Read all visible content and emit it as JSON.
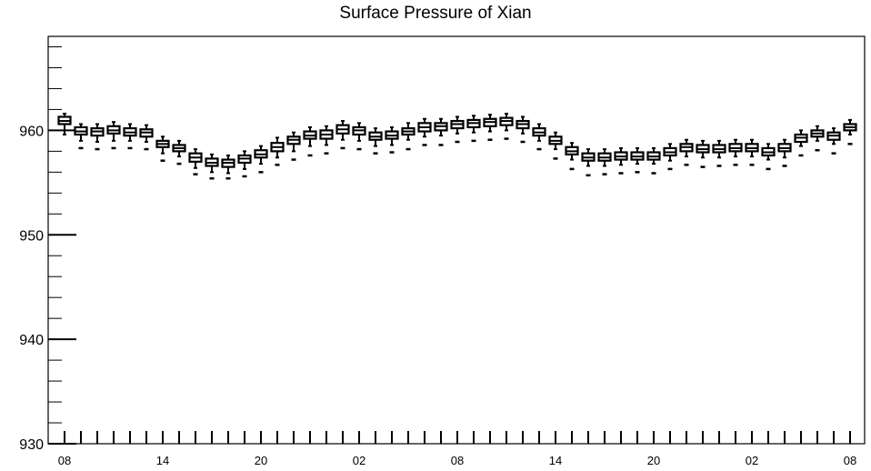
{
  "chart_data": {
    "type": "box",
    "title": "Surface Pressure of Xian",
    "xlabel": "",
    "ylabel": "",
    "ylim": [
      930,
      969
    ],
    "y_ticks": [
      "930",
      "940",
      "950",
      "960"
    ],
    "x_ticks": [
      "08",
      "14",
      "20",
      "02",
      "08",
      "14",
      "20",
      "02",
      "08"
    ],
    "grid": false,
    "series": [
      {
        "boxes": [
          {
            "x": 0,
            "min": 959.6,
            "q1": 960.6,
            "median": 960.9,
            "q3": 961.3,
            "max": 961.6,
            "outlier": null
          },
          {
            "x": 1,
            "min": 959.0,
            "q1": 959.6,
            "median": 959.9,
            "q3": 960.3,
            "max": 960.6,
            "outlier": 958.3
          },
          {
            "x": 2,
            "min": 958.9,
            "q1": 959.5,
            "median": 959.9,
            "q3": 960.2,
            "max": 960.6,
            "outlier": 958.2
          },
          {
            "x": 3,
            "min": 959.0,
            "q1": 959.7,
            "median": 960.0,
            "q3": 960.4,
            "max": 960.8,
            "outlier": 958.3
          },
          {
            "x": 4,
            "min": 959.0,
            "q1": 959.5,
            "median": 959.8,
            "q3": 960.2,
            "max": 960.6,
            "outlier": 958.3
          },
          {
            "x": 5,
            "min": 958.9,
            "q1": 959.4,
            "median": 959.8,
            "q3": 960.1,
            "max": 960.5,
            "outlier": 958.2
          },
          {
            "x": 6,
            "min": 957.8,
            "q1": 958.4,
            "median": 958.7,
            "q3": 959.0,
            "max": 959.4,
            "outlier": 957.1
          },
          {
            "x": 7,
            "min": 957.5,
            "q1": 958.0,
            "median": 958.3,
            "q3": 958.6,
            "max": 959.0,
            "outlier": 956.8
          },
          {
            "x": 8,
            "min": 956.4,
            "q1": 957.0,
            "median": 957.4,
            "q3": 957.8,
            "max": 958.2,
            "outlier": 955.8
          },
          {
            "x": 9,
            "min": 956.0,
            "q1": 956.6,
            "median": 956.9,
            "q3": 957.3,
            "max": 957.7,
            "outlier": 955.4
          },
          {
            "x": 10,
            "min": 955.9,
            "q1": 956.5,
            "median": 956.9,
            "q3": 957.2,
            "max": 957.6,
            "outlier": 955.4
          },
          {
            "x": 11,
            "min": 956.3,
            "q1": 956.9,
            "median": 957.3,
            "q3": 957.6,
            "max": 958.0,
            "outlier": 955.6
          },
          {
            "x": 12,
            "min": 956.8,
            "q1": 957.4,
            "median": 957.7,
            "q3": 958.1,
            "max": 958.5,
            "outlier": 956.0
          },
          {
            "x": 13,
            "min": 957.4,
            "q1": 958.0,
            "median": 958.4,
            "q3": 958.8,
            "max": 959.3,
            "outlier": 956.7
          },
          {
            "x": 14,
            "min": 958.0,
            "q1": 958.7,
            "median": 959.1,
            "q3": 959.4,
            "max": 959.8,
            "outlier": 957.2
          },
          {
            "x": 15,
            "min": 958.5,
            "q1": 959.2,
            "median": 959.5,
            "q3": 959.9,
            "max": 960.3,
            "outlier": 957.6
          },
          {
            "x": 16,
            "min": 958.6,
            "q1": 959.2,
            "median": 959.6,
            "q3": 960.0,
            "max": 960.4,
            "outlier": 957.8
          },
          {
            "x": 17,
            "min": 959.1,
            "q1": 959.7,
            "median": 960.1,
            "q3": 960.5,
            "max": 960.9,
            "outlier": 958.3
          },
          {
            "x": 18,
            "min": 959.0,
            "q1": 959.6,
            "median": 960.0,
            "q3": 960.3,
            "max": 960.7,
            "outlier": 958.2
          },
          {
            "x": 19,
            "min": 958.5,
            "q1": 959.1,
            "median": 959.4,
            "q3": 959.8,
            "max": 960.2,
            "outlier": 957.8
          },
          {
            "x": 20,
            "min": 958.6,
            "q1": 959.2,
            "median": 959.5,
            "q3": 959.9,
            "max": 960.3,
            "outlier": 957.9
          },
          {
            "x": 21,
            "min": 959.1,
            "q1": 959.6,
            "median": 959.9,
            "q3": 960.2,
            "max": 960.7,
            "outlier": 958.2
          },
          {
            "x": 22,
            "min": 959.4,
            "q1": 959.9,
            "median": 960.3,
            "q3": 960.7,
            "max": 961.1,
            "outlier": 958.6
          },
          {
            "x": 23,
            "min": 959.5,
            "q1": 960.0,
            "median": 960.4,
            "q3": 960.7,
            "max": 961.1,
            "outlier": 958.6
          },
          {
            "x": 24,
            "min": 959.7,
            "q1": 960.2,
            "median": 960.6,
            "q3": 960.9,
            "max": 961.3,
            "outlier": 958.9
          },
          {
            "x": 25,
            "min": 959.8,
            "q1": 960.3,
            "median": 960.7,
            "q3": 961.0,
            "max": 961.4,
            "outlier": 959.0
          },
          {
            "x": 26,
            "min": 959.9,
            "q1": 960.4,
            "median": 960.8,
            "q3": 961.1,
            "max": 961.5,
            "outlier": 959.1
          },
          {
            "x": 27,
            "min": 960.0,
            "q1": 960.5,
            "median": 960.9,
            "q3": 961.2,
            "max": 961.6,
            "outlier": 959.2
          },
          {
            "x": 28,
            "min": 959.7,
            "q1": 960.2,
            "median": 960.6,
            "q3": 960.9,
            "max": 961.3,
            "outlier": 958.9
          },
          {
            "x": 29,
            "min": 959.0,
            "q1": 959.5,
            "median": 959.8,
            "q3": 960.2,
            "max": 960.6,
            "outlier": 958.2
          },
          {
            "x": 30,
            "min": 958.2,
            "q1": 958.7,
            "median": 959.0,
            "q3": 959.4,
            "max": 959.8,
            "outlier": 957.3
          },
          {
            "x": 31,
            "min": 957.2,
            "q1": 957.7,
            "median": 958.0,
            "q3": 958.4,
            "max": 958.8,
            "outlier": 956.3
          },
          {
            "x": 32,
            "min": 956.6,
            "q1": 957.1,
            "median": 957.4,
            "q3": 957.8,
            "max": 958.2,
            "outlier": 955.7
          },
          {
            "x": 33,
            "min": 956.6,
            "q1": 957.1,
            "median": 957.4,
            "q3": 957.8,
            "max": 958.2,
            "outlier": 955.8
          },
          {
            "x": 34,
            "min": 956.7,
            "q1": 957.2,
            "median": 957.5,
            "q3": 957.9,
            "max": 958.3,
            "outlier": 955.9
          },
          {
            "x": 35,
            "min": 956.8,
            "q1": 957.2,
            "median": 957.5,
            "q3": 957.9,
            "max": 958.3,
            "outlier": 956.0
          },
          {
            "x": 36,
            "min": 956.8,
            "q1": 957.2,
            "median": 957.5,
            "q3": 957.9,
            "max": 958.3,
            "outlier": 955.9
          },
          {
            "x": 37,
            "min": 957.1,
            "q1": 957.6,
            "median": 957.9,
            "q3": 958.3,
            "max": 958.7,
            "outlier": 956.3
          },
          {
            "x": 38,
            "min": 957.5,
            "q1": 958.0,
            "median": 958.4,
            "q3": 958.7,
            "max": 959.1,
            "outlier": 956.7
          },
          {
            "x": 39,
            "min": 957.4,
            "q1": 957.9,
            "median": 958.2,
            "q3": 958.6,
            "max": 959.0,
            "outlier": 956.5
          },
          {
            "x": 40,
            "min": 957.4,
            "q1": 957.9,
            "median": 958.2,
            "q3": 958.6,
            "max": 959.0,
            "outlier": 956.6
          },
          {
            "x": 41,
            "min": 957.5,
            "q1": 958.0,
            "median": 958.3,
            "q3": 958.7,
            "max": 959.1,
            "outlier": 956.7
          },
          {
            "x": 42,
            "min": 957.5,
            "q1": 958.0,
            "median": 958.3,
            "q3": 958.7,
            "max": 959.1,
            "outlier": 956.7
          },
          {
            "x": 43,
            "min": 957.2,
            "q1": 957.6,
            "median": 957.9,
            "q3": 958.3,
            "max": 958.7,
            "outlier": 956.3
          },
          {
            "x": 44,
            "min": 957.4,
            "q1": 958.0,
            "median": 958.3,
            "q3": 958.7,
            "max": 959.1,
            "outlier": 956.6
          },
          {
            "x": 45,
            "min": 958.5,
            "q1": 958.9,
            "median": 959.3,
            "q3": 959.6,
            "max": 960.0,
            "outlier": 957.6
          },
          {
            "x": 46,
            "min": 959.0,
            "q1": 959.4,
            "median": 959.7,
            "q3": 960.0,
            "max": 960.4,
            "outlier": 958.1
          },
          {
            "x": 47,
            "min": 958.7,
            "q1": 959.1,
            "median": 959.5,
            "q3": 959.8,
            "max": 960.2,
            "outlier": 957.8
          },
          {
            "x": 48,
            "min": 959.6,
            "q1": 960.0,
            "median": 960.3,
            "q3": 960.6,
            "max": 961.0,
            "outlier": 958.7
          }
        ]
      }
    ]
  }
}
